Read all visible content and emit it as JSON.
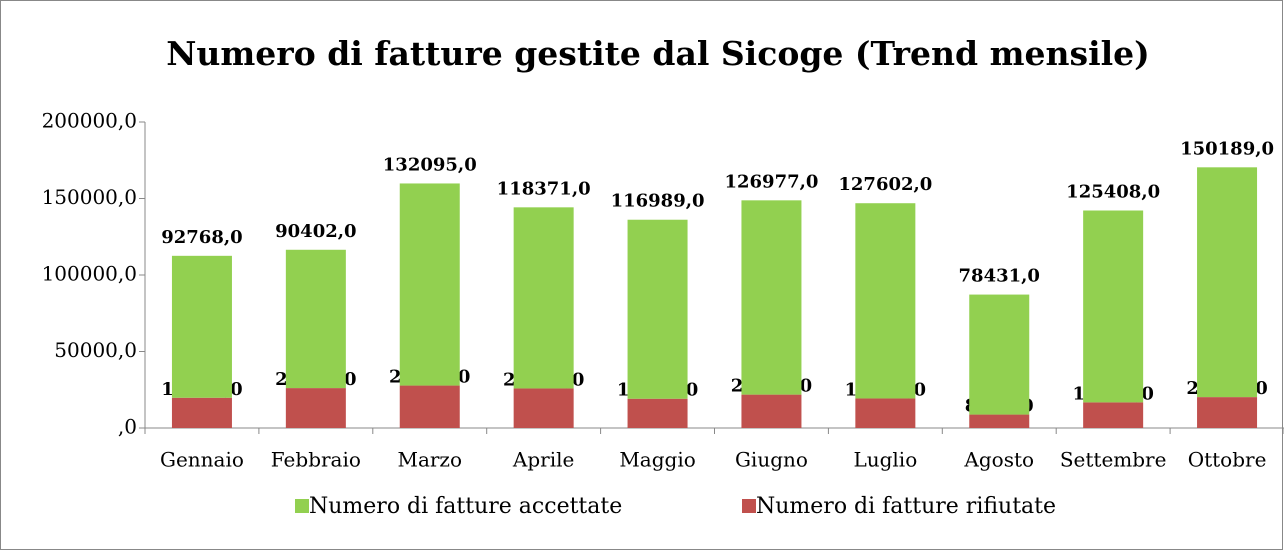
{
  "chart_data": {
    "type": "stacked_bar",
    "title": "Numero di fatture gestite dal Sicoge (Trend mensile)",
    "categories": [
      "Gennaio",
      "Febbraio",
      "Marzo",
      "Aprile",
      "Maggio",
      "Giugno",
      "Luglio",
      "Agosto",
      "Settembre",
      "Ottobre"
    ],
    "series": [
      {
        "name": "Numero di fatture accettate",
        "color": "#92d050",
        "values": [
          92768,
          90402,
          132095,
          118371,
          116989,
          126977,
          127602,
          78431,
          125408,
          150189
        ],
        "value_labels": [
          "92768,0",
          "90402,0",
          "132095,0",
          "118371,0",
          "116989,0",
          "126977,0",
          "127602,0",
          "78431,0",
          "125408,0",
          "150189,0"
        ]
      },
      {
        "name": "Numero di fatture rifiutate",
        "color": "#c0504d",
        "values": [
          19765,
          26086,
          27734,
          25856,
          19137,
          21823,
          19312,
          8777,
          16745,
          20193
        ],
        "value_labels": [
          "19765,0",
          "26086,0",
          "27734,0",
          "25856,0",
          "19137,0",
          "21823,0",
          "19312,0",
          "8777,0",
          "16745,0",
          "20193,0"
        ]
      }
    ],
    "ylim": [
      0,
      200000
    ],
    "yticks": [
      {
        "value": 0,
        "label": ",0"
      },
      {
        "value": 50000,
        "label": "50000,0"
      },
      {
        "value": 100000,
        "label": "100000,0"
      },
      {
        "value": 150000,
        "label": "150000,0"
      },
      {
        "value": 200000,
        "label": "200000,0"
      }
    ],
    "legend": "bottom"
  }
}
